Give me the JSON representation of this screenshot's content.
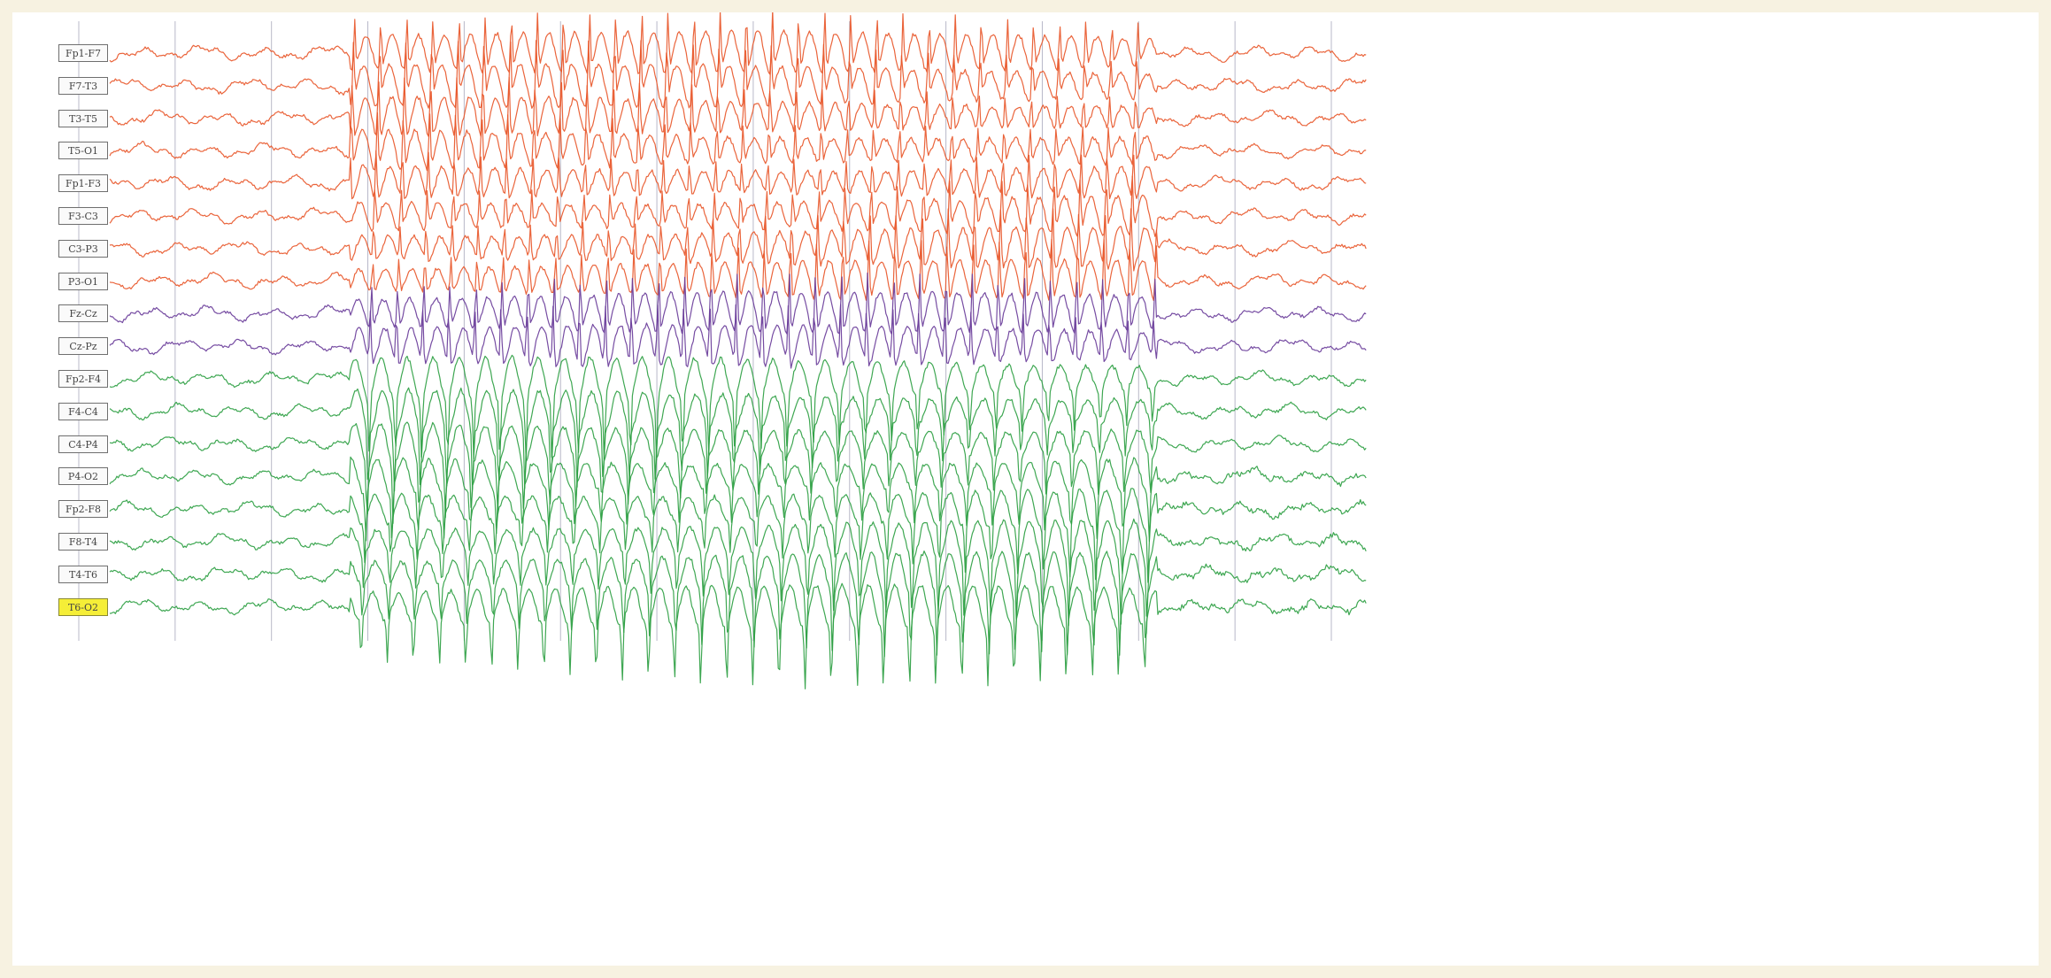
{
  "chart_data": {
    "type": "line",
    "title": "",
    "xlabel": "",
    "ylabel": "",
    "grid": "vertical",
    "num_vertical_gridlines": 14,
    "seizure_segment": {
      "start_fraction": 0.205,
      "end_fraction": 0.825
    },
    "channels": [
      {
        "name": "Fp1-F7",
        "group": "left",
        "color": "#e8572a"
      },
      {
        "name": "F7-T3",
        "group": "left",
        "color": "#e8572a"
      },
      {
        "name": "T3-T5",
        "group": "left",
        "color": "#e8572a"
      },
      {
        "name": "T5-O1",
        "group": "left",
        "color": "#e8572a"
      },
      {
        "name": "Fp1-F3",
        "group": "left",
        "color": "#e8572a"
      },
      {
        "name": "F3-C3",
        "group": "left",
        "color": "#e8572a"
      },
      {
        "name": "C3-P3",
        "group": "left",
        "color": "#e8572a"
      },
      {
        "name": "P3-O1",
        "group": "left",
        "color": "#e8572a"
      },
      {
        "name": "Fz-Cz",
        "group": "midline",
        "color": "#6a3d9a"
      },
      {
        "name": "Cz-Pz",
        "group": "midline",
        "color": "#6a3d9a"
      },
      {
        "name": "Fp2-F4",
        "group": "right",
        "color": "#2ea043"
      },
      {
        "name": "F4-C4",
        "group": "right",
        "color": "#2ea043"
      },
      {
        "name": "C4-P4",
        "group": "right",
        "color": "#2ea043"
      },
      {
        "name": "P4-O2",
        "group": "right",
        "color": "#2ea043"
      },
      {
        "name": "Fp2-F8",
        "group": "right",
        "color": "#2ea043"
      },
      {
        "name": "F8-T4",
        "group": "right",
        "color": "#2ea043"
      },
      {
        "name": "T4-T6",
        "group": "right",
        "color": "#2ea043"
      },
      {
        "name": "T6-O2",
        "group": "right",
        "color": "#2ea043",
        "highlighted": true
      }
    ]
  },
  "colors": {
    "page_background": "#f7f2e1",
    "chart_background": "#ffffff",
    "gridline": "#b8b8c8",
    "label_highlight": "#f5ee37"
  }
}
